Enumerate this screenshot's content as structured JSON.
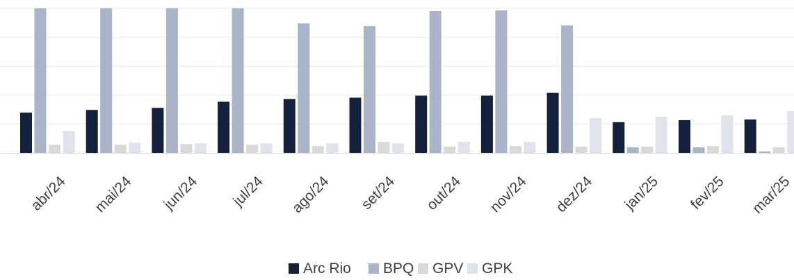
{
  "chart_data": {
    "type": "bar",
    "title": "",
    "xlabel": "",
    "ylabel": "",
    "categories": [
      "abr/24",
      "mai/24",
      "jun/24",
      "jul/24",
      "ago/24",
      "set/24",
      "out/24",
      "nov/24",
      "dez/24",
      "jan/25",
      "fev/25",
      "mar/25"
    ],
    "series": [
      {
        "name": "Arc Rio",
        "color": "#14213d",
        "values": [
          59,
          63,
          66,
          75,
          79,
          81,
          84,
          84,
          88,
          45,
          48,
          49
        ]
      },
      {
        "name": "BPQ",
        "color": "#aab4c8",
        "values": [
          212,
          212,
          212,
          212,
          190,
          186,
          208,
          209,
          187,
          8,
          8,
          2
        ]
      },
      {
        "name": "GPV",
        "color": "#d9d9d9",
        "values": [
          12,
          12,
          13,
          12,
          10,
          16,
          9,
          10,
          9,
          9,
          10,
          8
        ]
      },
      {
        "name": "GPK",
        "color": "#dfe3eb",
        "values": [
          32,
          15,
          14,
          14,
          14,
          14,
          16,
          16,
          51,
          53,
          55,
          61
        ]
      }
    ],
    "ylim": [
      0,
      212
    ],
    "grid": true,
    "legend": "bottom-center"
  }
}
